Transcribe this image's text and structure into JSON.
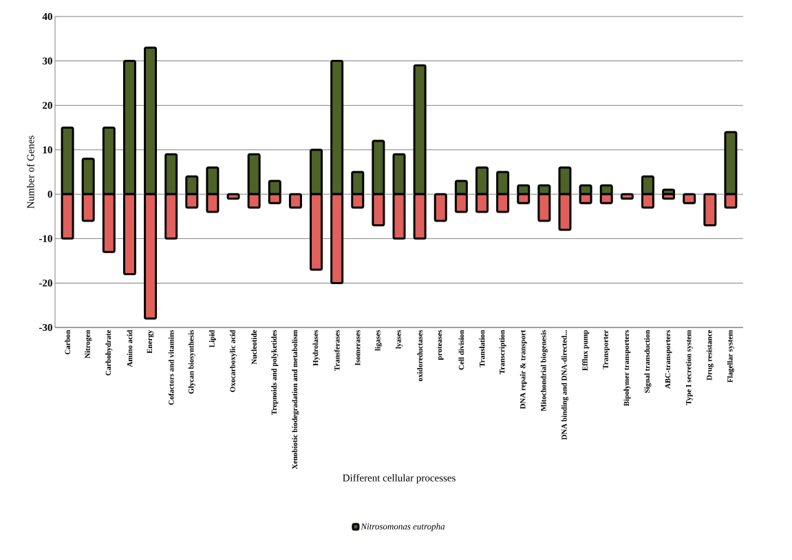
{
  "chart_data": {
    "type": "bar",
    "xlabel": "Different cellular processes",
    "ylabel": "Number of Genes",
    "categories": [
      "Carbon",
      "Nitrogen",
      "Carbohydrate",
      "Amino acid",
      "Energy",
      "Cofactors and vitamins",
      "Glycan biosynthesis",
      "Lipid",
      "Oxocarboxylic acid",
      "Nucleotide",
      "Trepnoids and polyketides",
      "Xenobiotic biodegradation and metabolism",
      "Hydrolases",
      "Transferases",
      "Isomerases",
      "ligases",
      "lyases",
      "oxidoreductases",
      "proteases",
      "Cell division",
      "Translation",
      "Transcription",
      "DNA repair & transport",
      "Mitochondrial biogenesis",
      "DNA binding and DNA-directed...",
      "Efflux pump",
      "Transporter",
      "Bipolymer transporters",
      "Signal transduction",
      "ABC-transporters",
      "Type I secretion system",
      "Drug resistance",
      "Flagellar system"
    ],
    "series": [
      {
        "name": "Nitrosomonas eutropha",
        "color": "#4f6228",
        "values": [
          15,
          8,
          15,
          30,
          33,
          9,
          4,
          6,
          0,
          9,
          3,
          0,
          10,
          30,
          5,
          12,
          9,
          29,
          0,
          3,
          6,
          5,
          2,
          2,
          6,
          2,
          2,
          0,
          4,
          1,
          0,
          0,
          14
        ]
      },
      {
        "color": "#e0605c",
        "values": [
          -10,
          -6,
          -13,
          -18,
          -28,
          -10,
          -3,
          -4,
          -1,
          -3,
          -2,
          -3,
          -17,
          -20,
          -3,
          -7,
          -10,
          -10,
          -6,
          -4,
          -4,
          -4,
          -2,
          -6,
          -8,
          -2,
          -2,
          -1,
          -3,
          -1,
          -2,
          -7,
          -3
        ]
      }
    ],
    "ylim": [
      -30,
      40
    ],
    "yticks": [
      -30,
      -20,
      -10,
      0,
      10,
      20,
      30,
      40
    ],
    "stacked": true,
    "grid": "y",
    "legend": "bottom"
  }
}
